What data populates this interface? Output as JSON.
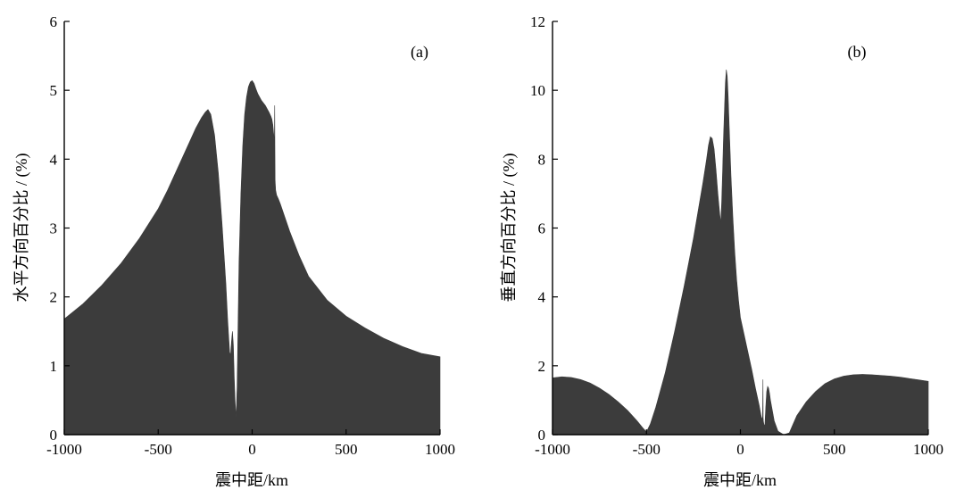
{
  "chart_data": [
    {
      "type": "area",
      "panel_label": "(a)",
      "xlabel": "震中距/km",
      "ylabel": "水平方向百分比 / (%)",
      "xlim": [
        -1000,
        1000
      ],
      "ylim": [
        0,
        6
      ],
      "xticks": [
        -1000,
        -500,
        0,
        500,
        1000
      ],
      "yticks": [
        0,
        1,
        2,
        3,
        4,
        5,
        6
      ],
      "fill_color": "#3c3c3c",
      "grid": false,
      "x": [
        -1000,
        -900,
        -800,
        -700,
        -600,
        -500,
        -450,
        -400,
        -350,
        -300,
        -270,
        -250,
        -235,
        -220,
        -200,
        -180,
        -160,
        -140,
        -130,
        -120,
        -115,
        -110,
        -105,
        -100,
        -95,
        -90,
        -85,
        -80,
        -75,
        -70,
        -60,
        -50,
        -40,
        -30,
        -20,
        -10,
        0,
        10,
        20,
        30,
        50,
        70,
        90,
        100,
        105,
        110,
        115,
        118,
        120,
        121,
        122,
        125,
        130,
        140,
        150,
        200,
        250,
        300,
        400,
        500,
        600,
        700,
        800,
        900,
        1000
      ],
      "y": [
        1.68,
        1.9,
        2.17,
        2.48,
        2.85,
        3.28,
        3.55,
        3.85,
        4.15,
        4.45,
        4.6,
        4.68,
        4.72,
        4.65,
        4.35,
        3.8,
        3.05,
        2.2,
        1.65,
        1.2,
        1.15,
        1.35,
        1.5,
        1.3,
        0.8,
        0.45,
        0.25,
        0.7,
        1.6,
        2.5,
        3.5,
        4.2,
        4.65,
        4.9,
        5.05,
        5.12,
        5.14,
        5.1,
        5.02,
        4.95,
        4.85,
        4.78,
        4.68,
        4.62,
        4.58,
        4.5,
        4.35,
        4.2,
        4.78,
        4.2,
        3.7,
        3.55,
        3.48,
        3.42,
        3.35,
        2.95,
        2.6,
        2.3,
        1.95,
        1.72,
        1.55,
        1.4,
        1.28,
        1.18,
        1.13
      ]
    },
    {
      "type": "area",
      "panel_label": "(b)",
      "xlabel": "震中距/km",
      "ylabel": "垂直方向百分比 / (%)",
      "xlim": [
        -1000,
        1000
      ],
      "ylim": [
        0,
        12
      ],
      "xticks": [
        -1000,
        -500,
        0,
        500,
        1000
      ],
      "yticks": [
        0,
        2,
        4,
        6,
        8,
        10,
        12
      ],
      "fill_color": "#3c3c3c",
      "grid": false,
      "x": [
        -1000,
        -950,
        -900,
        -850,
        -800,
        -750,
        -700,
        -650,
        -600,
        -550,
        -520,
        -500,
        -480,
        -450,
        -400,
        -350,
        -300,
        -250,
        -200,
        -180,
        -170,
        -160,
        -150,
        -140,
        -130,
        -120,
        -110,
        -105,
        -100,
        -95,
        -90,
        -80,
        -75,
        -70,
        -65,
        -60,
        -50,
        -40,
        -30,
        -20,
        -10,
        0,
        20,
        40,
        60,
        80,
        100,
        110,
        115,
        118,
        120,
        121,
        122,
        125,
        130,
        135,
        140,
        145,
        150,
        155,
        160,
        170,
        180,
        200,
        230,
        260,
        280,
        300,
        350,
        400,
        450,
        500,
        550,
        600,
        650,
        700,
        750,
        800,
        850,
        900,
        950,
        1000
      ],
      "y": [
        1.65,
        1.68,
        1.66,
        1.6,
        1.5,
        1.35,
        1.17,
        0.95,
        0.7,
        0.4,
        0.2,
        0.08,
        0.3,
        0.8,
        1.8,
        3.0,
        4.3,
        5.7,
        7.3,
        8.0,
        8.4,
        8.65,
        8.6,
        8.3,
        7.7,
        7.0,
        6.4,
        6.15,
        6.7,
        7.6,
        8.6,
        10.2,
        10.6,
        10.4,
        9.8,
        9.0,
        7.5,
        6.3,
        5.3,
        4.5,
        3.9,
        3.4,
        2.9,
        2.4,
        1.9,
        1.35,
        0.85,
        0.55,
        0.45,
        0.5,
        1.6,
        0.5,
        0.4,
        0.3,
        0.25,
        0.8,
        1.25,
        1.4,
        1.35,
        1.2,
        1.0,
        0.7,
        0.4,
        0.1,
        0.0,
        0.05,
        0.3,
        0.55,
        0.95,
        1.25,
        1.48,
        1.62,
        1.7,
        1.74,
        1.75,
        1.74,
        1.72,
        1.7,
        1.67,
        1.63,
        1.59,
        1.55
      ]
    }
  ]
}
